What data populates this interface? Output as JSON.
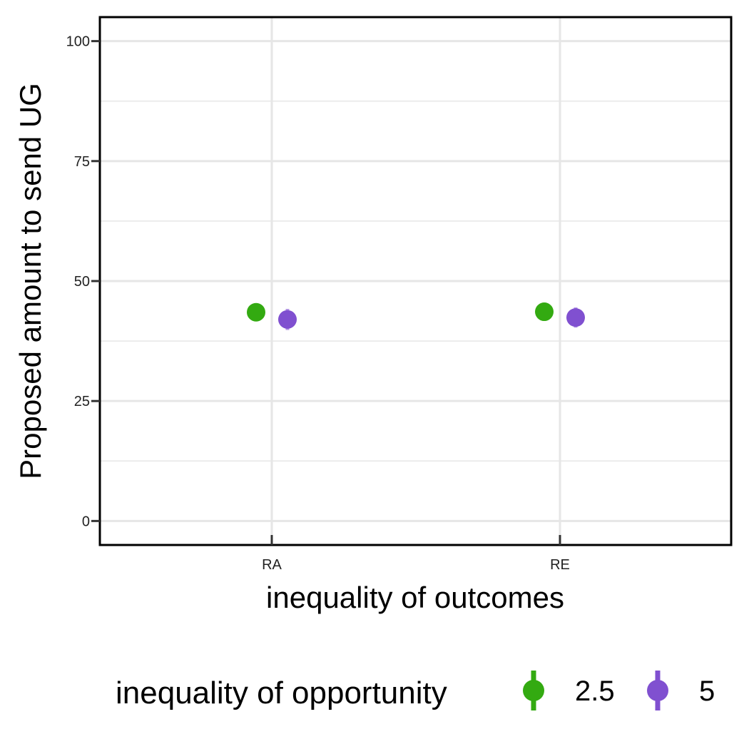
{
  "chart_data": {
    "type": "scatter",
    "xlabel": "inequality of outcomes",
    "ylabel": "Proposed amount to send UG",
    "categories": [
      "RA",
      "RE"
    ],
    "ylim": [
      -5,
      105
    ],
    "y_ticks": [
      0,
      25,
      50,
      75,
      100
    ],
    "grid": true,
    "legend": {
      "title": "inequality of opportunity",
      "position": "bottom"
    },
    "series": [
      {
        "name": "2.5",
        "color": "#33AA11",
        "points": [
          {
            "x": "RA",
            "y": 43.5,
            "lower": 41.8,
            "upper": 45.2
          },
          {
            "x": "RE",
            "y": 43.6,
            "lower": 41.7,
            "upper": 45.5
          }
        ]
      },
      {
        "name": "5",
        "color": "#8050D0",
        "points": [
          {
            "x": "RA",
            "y": 42.0,
            "lower": 39.8,
            "upper": 44.2
          },
          {
            "x": "RE",
            "y": 42.4,
            "lower": 40.3,
            "upper": 44.5
          }
        ]
      }
    ]
  }
}
